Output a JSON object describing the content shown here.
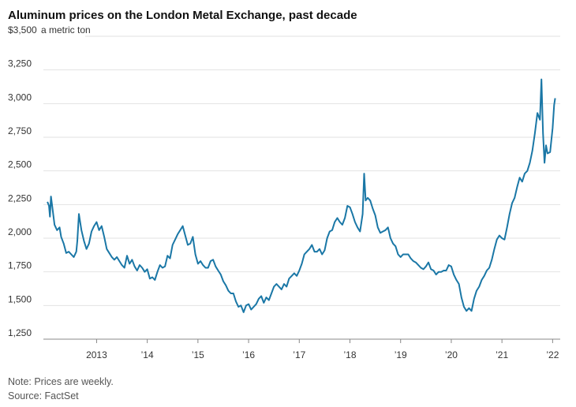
{
  "chart_data": {
    "type": "line",
    "title": "Aluminum prices on the London Metal Exchange, past decade",
    "unit_label": "a metric ton",
    "note": "Note: Prices are weekly.",
    "source": "Source: FactSet",
    "x": [
      2012.03,
      2012.06,
      2012.08,
      2012.1,
      2012.12,
      2012.17,
      2012.22,
      2012.27,
      2012.3,
      2012.35,
      2012.4,
      2012.45,
      2012.5,
      2012.55,
      2012.6,
      2012.62,
      2012.65,
      2012.7,
      2012.75,
      2012.8,
      2012.85,
      2012.9,
      2012.95,
      2013.0,
      2013.05,
      2013.1,
      2013.15,
      2013.2,
      2013.25,
      2013.3,
      2013.35,
      2013.4,
      2013.45,
      2013.5,
      2013.55,
      2013.6,
      2013.65,
      2013.7,
      2013.75,
      2013.8,
      2013.85,
      2013.9,
      2013.95,
      2014.0,
      2014.05,
      2014.1,
      2014.15,
      2014.2,
      2014.25,
      2014.3,
      2014.35,
      2014.4,
      2014.45,
      2014.5,
      2014.55,
      2014.6,
      2014.65,
      2014.7,
      2014.75,
      2014.8,
      2014.85,
      2014.9,
      2014.95,
      2015.0,
      2015.05,
      2015.1,
      2015.15,
      2015.2,
      2015.25,
      2015.3,
      2015.35,
      2015.4,
      2015.45,
      2015.5,
      2015.55,
      2015.6,
      2015.65,
      2015.7,
      2015.75,
      2015.8,
      2015.85,
      2015.9,
      2015.95,
      2016.0,
      2016.05,
      2016.1,
      2016.15,
      2016.2,
      2016.25,
      2016.3,
      2016.35,
      2016.4,
      2016.45,
      2016.5,
      2016.55,
      2016.6,
      2016.65,
      2016.7,
      2016.75,
      2016.8,
      2016.85,
      2016.9,
      2016.95,
      2017.0,
      2017.05,
      2017.1,
      2017.15,
      2017.2,
      2017.25,
      2017.3,
      2017.35,
      2017.4,
      2017.45,
      2017.5,
      2017.55,
      2017.6,
      2017.65,
      2017.7,
      2017.75,
      2017.8,
      2017.85,
      2017.9,
      2017.95,
      2018.0,
      2018.05,
      2018.1,
      2018.15,
      2018.2,
      2018.25,
      2018.28,
      2018.31,
      2018.35,
      2018.4,
      2018.45,
      2018.5,
      2018.55,
      2018.6,
      2018.65,
      2018.7,
      2018.75,
      2018.8,
      2018.85,
      2018.9,
      2018.95,
      2019.0,
      2019.05,
      2019.1,
      2019.15,
      2019.2,
      2019.25,
      2019.3,
      2019.35,
      2019.4,
      2019.45,
      2019.5,
      2019.55,
      2019.6,
      2019.65,
      2019.7,
      2019.75,
      2019.8,
      2019.85,
      2019.9,
      2019.95,
      2020.0,
      2020.05,
      2020.1,
      2020.15,
      2020.2,
      2020.25,
      2020.3,
      2020.35,
      2020.4,
      2020.45,
      2020.5,
      2020.55,
      2020.6,
      2020.65,
      2020.7,
      2020.75,
      2020.8,
      2020.85,
      2020.9,
      2020.95,
      2021.0,
      2021.05,
      2021.1,
      2021.15,
      2021.2,
      2021.25,
      2021.3,
      2021.35,
      2021.4,
      2021.45,
      2021.5,
      2021.55,
      2021.6,
      2021.65,
      2021.7,
      2021.75,
      2021.78,
      2021.81,
      2021.84,
      2021.87,
      2021.9,
      2021.95,
      2022.0,
      2022.03,
      2022.05
    ],
    "series": [
      {
        "name": "Aluminum",
        "color": "#1a77a6",
        "values": [
          2270,
          2240,
          2160,
          2310,
          2250,
          2100,
          2060,
          2080,
          2010,
          1960,
          1890,
          1900,
          1880,
          1860,
          1900,
          1980,
          2180,
          2060,
          1980,
          1920,
          1960,
          2050,
          2090,
          2120,
          2060,
          2090,
          2010,
          1920,
          1890,
          1860,
          1840,
          1860,
          1830,
          1800,
          1780,
          1870,
          1810,
          1840,
          1790,
          1760,
          1800,
          1780,
          1750,
          1770,
          1700,
          1710,
          1690,
          1750,
          1800,
          1780,
          1790,
          1870,
          1850,
          1950,
          1990,
          2030,
          2060,
          2090,
          2020,
          1950,
          1960,
          2010,
          1880,
          1810,
          1830,
          1800,
          1780,
          1780,
          1830,
          1840,
          1790,
          1760,
          1730,
          1680,
          1650,
          1610,
          1590,
          1590,
          1530,
          1490,
          1500,
          1450,
          1500,
          1510,
          1470,
          1490,
          1510,
          1550,
          1570,
          1520,
          1560,
          1540,
          1590,
          1640,
          1660,
          1640,
          1620,
          1660,
          1640,
          1700,
          1720,
          1740,
          1720,
          1760,
          1810,
          1880,
          1900,
          1920,
          1950,
          1900,
          1900,
          1920,
          1880,
          1910,
          2000,
          2050,
          2060,
          2120,
          2150,
          2120,
          2100,
          2150,
          2240,
          2230,
          2180,
          2120,
          2080,
          2050,
          2180,
          2480,
          2280,
          2300,
          2280,
          2220,
          2170,
          2080,
          2040,
          2050,
          2060,
          2080,
          2000,
          1960,
          1940,
          1880,
          1860,
          1880,
          1880,
          1880,
          1850,
          1830,
          1820,
          1800,
          1780,
          1770,
          1790,
          1820,
          1770,
          1760,
          1730,
          1750,
          1750,
          1760,
          1760,
          1800,
          1790,
          1730,
          1690,
          1660,
          1560,
          1490,
          1460,
          1480,
          1460,
          1550,
          1610,
          1640,
          1690,
          1720,
          1760,
          1780,
          1840,
          1920,
          1990,
          2020,
          2000,
          1990,
          2080,
          2180,
          2260,
          2300,
          2380,
          2450,
          2420,
          2480,
          2500,
          2560,
          2650,
          2780,
          2930,
          2880,
          3180,
          2780,
          2560,
          2690,
          2630,
          2640,
          2820,
          2990,
          3040
        ]
      }
    ],
    "xlim": [
      2011.95,
      2022.15
    ],
    "xticks": [
      {
        "value": 2013,
        "label": "2013"
      },
      {
        "value": 2014,
        "label": "’14"
      },
      {
        "value": 2015,
        "label": "’15"
      },
      {
        "value": 2016,
        "label": "’16"
      },
      {
        "value": 2017,
        "label": "’17"
      },
      {
        "value": 2018,
        "label": "’18"
      },
      {
        "value": 2019,
        "label": "’19"
      },
      {
        "value": 2020,
        "label": "’20"
      },
      {
        "value": 2021,
        "label": "’21"
      },
      {
        "value": 2022,
        "label": "’22"
      }
    ],
    "ylim": [
      1250,
      3500
    ],
    "yticks": [
      {
        "value": 1250,
        "label": "1,250"
      },
      {
        "value": 1500,
        "label": "1,500"
      },
      {
        "value": 1750,
        "label": "1,750"
      },
      {
        "value": 2000,
        "label": "2,000"
      },
      {
        "value": 2250,
        "label": "2,250"
      },
      {
        "value": 2500,
        "label": "2,500"
      },
      {
        "value": 2750,
        "label": "2,750"
      },
      {
        "value": 3000,
        "label": "3,000"
      },
      {
        "value": 3250,
        "label": "3,250"
      },
      {
        "value": 3500,
        "label": "$3,500"
      }
    ],
    "grid": true
  }
}
